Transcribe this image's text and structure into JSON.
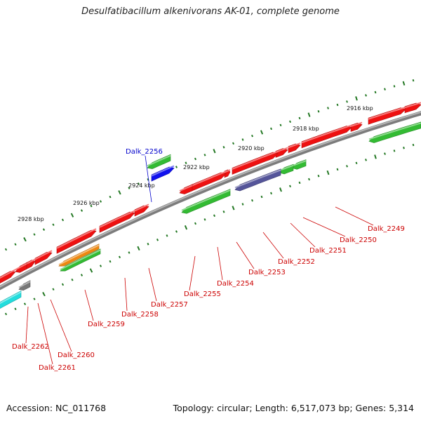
{
  "title": "Desulfatibacillum alkenivorans AK-01, complete genome",
  "footer": {
    "accession": "Accession: NC_011768",
    "summary": "Topology: circular; Length: 6,517,073 bp; Genes: 5,314"
  },
  "colors": {
    "backbone": "#8a8a8a",
    "tick": "#227722",
    "label_red": "#cc0000",
    "label_blue": "#0000cc",
    "red_gene": "#ee1111",
    "green_gene": "#33bb33",
    "blue_gene": "#1111ee",
    "purple_gene": "#55559a",
    "orange_gene": "#ee8811",
    "cyan_gene": "#22dddd",
    "gray_gene": "#777777"
  },
  "scale_labels": [
    {
      "text": "2916 kbp"
    },
    {
      "text": "2918 kbp"
    },
    {
      "text": "2920 kbp"
    },
    {
      "text": "2922 kbp"
    },
    {
      "text": "2924 kbp"
    },
    {
      "text": "2926 kbp"
    },
    {
      "text": "2928 kbp"
    }
  ],
  "gene_labels": [
    {
      "text": "Dalk_2249",
      "color": "red"
    },
    {
      "text": "Dalk_2250",
      "color": "red"
    },
    {
      "text": "Dalk_2251",
      "color": "red"
    },
    {
      "text": "Dalk_2252",
      "color": "red"
    },
    {
      "text": "Dalk_2253",
      "color": "red"
    },
    {
      "text": "Dalk_2254",
      "color": "red"
    },
    {
      "text": "Dalk_2255",
      "color": "red"
    },
    {
      "text": "Dalk_2256",
      "color": "blue"
    },
    {
      "text": "Dalk_2257",
      "color": "red"
    },
    {
      "text": "Dalk_2258",
      "color": "red"
    },
    {
      "text": "Dalk_2259",
      "color": "red"
    },
    {
      "text": "Dalk_2260",
      "color": "red"
    },
    {
      "text": "Dalk_2261",
      "color": "red"
    },
    {
      "text": "Dalk_2262",
      "color": "red"
    }
  ]
}
